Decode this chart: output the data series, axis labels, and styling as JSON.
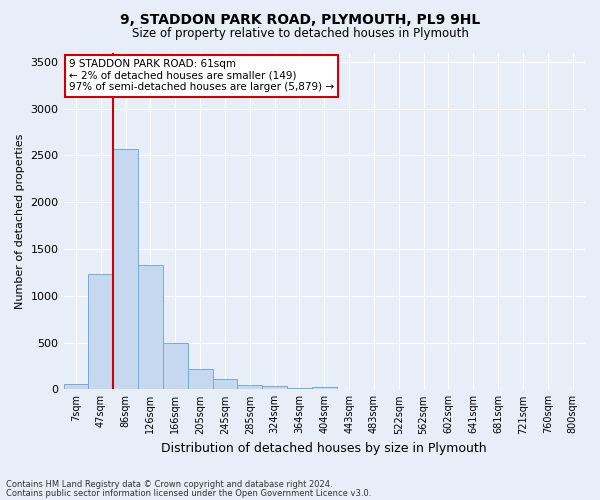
{
  "title": "9, STADDON PARK ROAD, PLYMOUTH, PL9 9HL",
  "subtitle": "Size of property relative to detached houses in Plymouth",
  "xlabel": "Distribution of detached houses by size in Plymouth",
  "ylabel": "Number of detached properties",
  "bar_color": "#c5d8f0",
  "bar_edge_color": "#7aaad0",
  "background_color": "#e8eef8",
  "grid_color": "#ffffff",
  "categories": [
    "7sqm",
    "47sqm",
    "86sqm",
    "126sqm",
    "166sqm",
    "205sqm",
    "245sqm",
    "285sqm",
    "324sqm",
    "364sqm",
    "404sqm",
    "443sqm",
    "483sqm",
    "522sqm",
    "562sqm",
    "602sqm",
    "641sqm",
    "681sqm",
    "721sqm",
    "760sqm",
    "800sqm"
  ],
  "values": [
    55,
    1230,
    2570,
    1330,
    490,
    220,
    115,
    50,
    30,
    15,
    20,
    5,
    0,
    0,
    0,
    0,
    0,
    0,
    0,
    0,
    0
  ],
  "ylim": [
    0,
    3600
  ],
  "yticks": [
    0,
    500,
    1000,
    1500,
    2000,
    2500,
    3000,
    3500
  ],
  "vline_after_bar": 1,
  "annotation_title": "9 STADDON PARK ROAD: 61sqm",
  "annotation_line1": "← 2% of detached houses are smaller (149)",
  "annotation_line2": "97% of semi-detached houses are larger (5,879) →",
  "annotation_box_color": "#ffffff",
  "annotation_border_color": "#cc0000",
  "vline_color": "#cc0000",
  "footer1": "Contains HM Land Registry data © Crown copyright and database right 2024.",
  "footer2": "Contains public sector information licensed under the Open Government Licence v3.0."
}
